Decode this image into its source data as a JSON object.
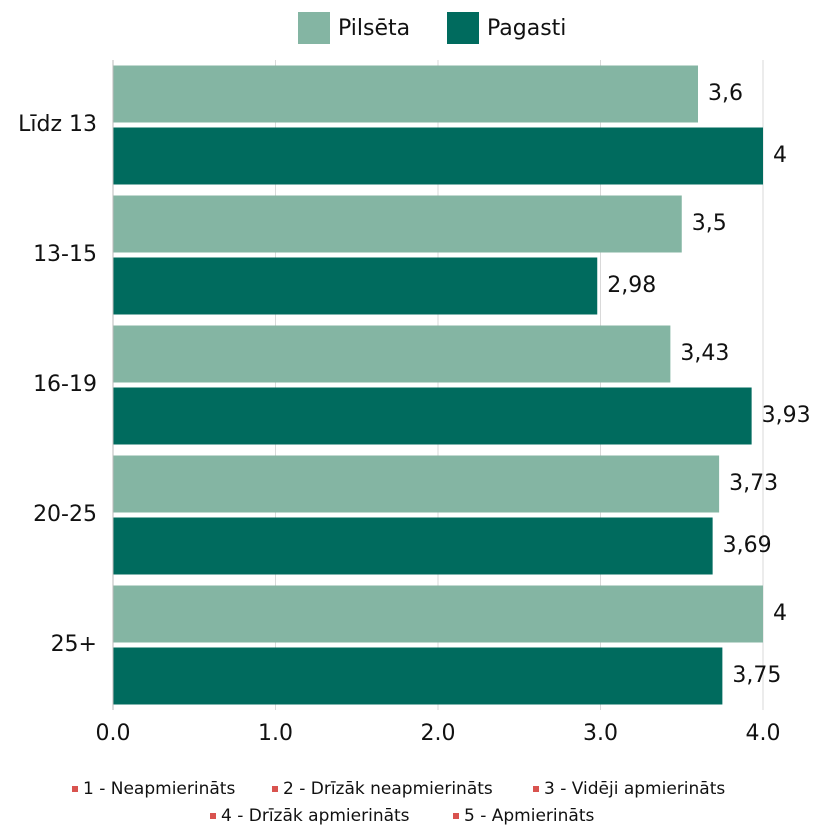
{
  "chart_data": {
    "type": "hbar",
    "categories": [
      "Līdz 13",
      "13-15",
      "16-19",
      "20-25",
      "25+"
    ],
    "series": [
      {
        "name": "Pilsēta",
        "color": "#84b5a3",
        "values": [
          3.6,
          3.5,
          3.43,
          3.73,
          4
        ],
        "value_labels": [
          "3,6",
          "3,5",
          "3,43",
          "3,73",
          "4"
        ]
      },
      {
        "name": "Pagasti",
        "color": "#006b5e",
        "values": [
          4,
          2.98,
          3.93,
          3.69,
          3.75
        ],
        "value_labels": [
          "4",
          "2,98",
          "3,93",
          "3,69",
          "3,75"
        ]
      }
    ],
    "xlim": [
      0,
      4
    ],
    "xticks": [
      {
        "value": 0,
        "label": "0.0"
      },
      {
        "value": 1,
        "label": "1.0"
      },
      {
        "value": 2,
        "label": "2.0"
      },
      {
        "value": 3,
        "label": "3.0"
      },
      {
        "value": 4,
        "label": "4.0"
      }
    ],
    "grid": true,
    "legend": "top",
    "scale_legend": {
      "color": "#d9534f",
      "items": [
        "1 - Neapmierināts",
        "2 - Drīzāk neapmierināts",
        "3 - Vidēji apmierināts",
        "4 - Drīzāk apmierināts",
        "5 - Apmierināts"
      ]
    }
  }
}
